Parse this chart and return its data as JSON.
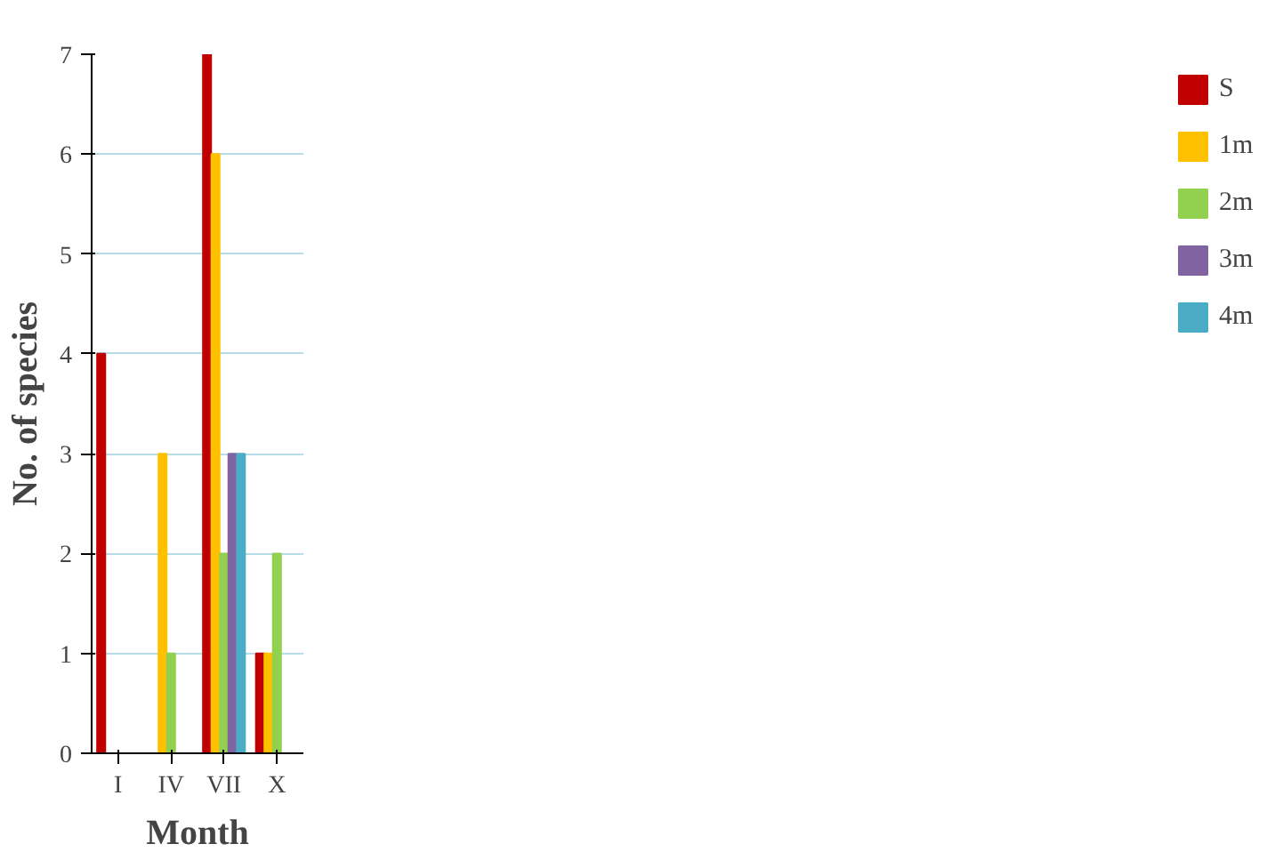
{
  "chart_data": {
    "type": "bar",
    "xlabel": "Month",
    "ylabel": "No. of species",
    "categories": [
      "I",
      "IV",
      "VII",
      "X"
    ],
    "series": [
      {
        "name": "S",
        "color": "#c00000",
        "values": [
          4,
          0,
          7,
          1
        ]
      },
      {
        "name": "1m",
        "color": "#ffc000",
        "values": [
          null,
          3,
          6,
          1
        ]
      },
      {
        "name": "2m",
        "color": "#92d050",
        "values": [
          null,
          1,
          2,
          2
        ]
      },
      {
        "name": "3m",
        "color": "#8064a2",
        "values": [
          null,
          0,
          3,
          0
        ]
      },
      {
        "name": "4m",
        "color": "#4bacc6",
        "values": [
          null,
          0,
          3,
          0
        ]
      }
    ],
    "ylim": [
      0,
      7
    ],
    "yticks": [
      0,
      1,
      2,
      3,
      4,
      5,
      6,
      7
    ],
    "grid": "y",
    "legend": "right"
  }
}
